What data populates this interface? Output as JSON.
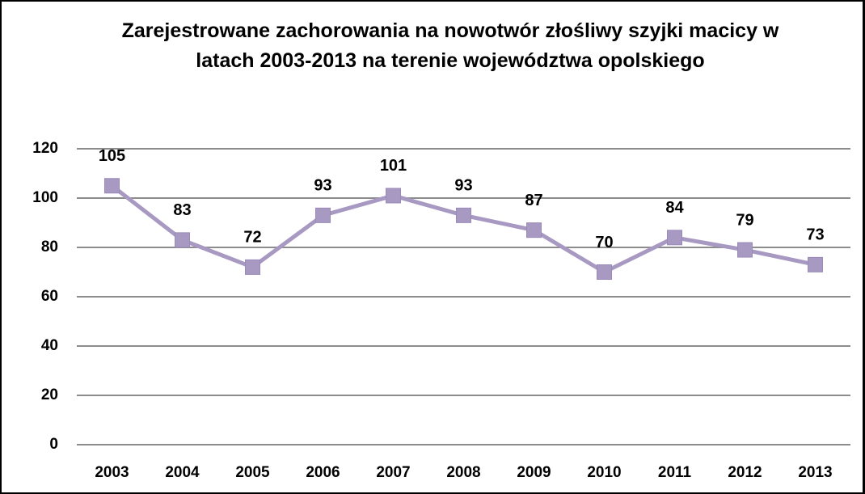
{
  "chart_data": {
    "type": "line",
    "title": "Zarejestrowane zachorowania na nowotwór złośliwy szyjki macicy w latach 2003-2013 na terenie województwa opolskiego",
    "categories": [
      "2003",
      "2004",
      "2005",
      "2006",
      "2007",
      "2008",
      "2009",
      "2010",
      "2011",
      "2012",
      "2013"
    ],
    "values": [
      105,
      83,
      72,
      93,
      101,
      93,
      87,
      70,
      84,
      79,
      73
    ],
    "color": "#a899c2",
    "ylim": [
      0,
      120
    ],
    "yticks": [
      0,
      20,
      40,
      60,
      80,
      100,
      120
    ],
    "grid": true
  }
}
